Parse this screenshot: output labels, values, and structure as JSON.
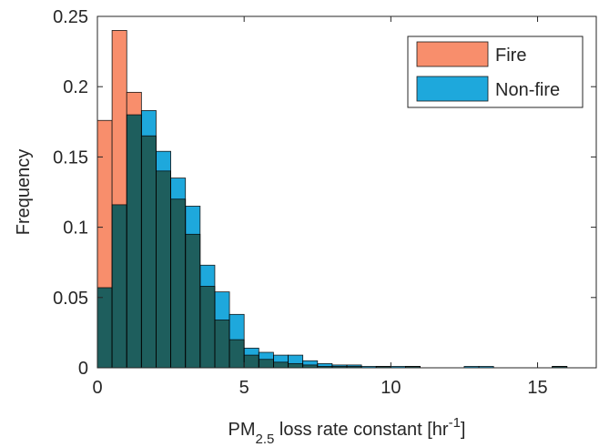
{
  "chart_data": {
    "type": "histogram",
    "ylabel": "Frequency",
    "xlabel": [
      "PM",
      "2.5",
      " loss rate constant [hr",
      "-1",
      "]"
    ],
    "bins": [
      0,
      0.5,
      1,
      1.5,
      2,
      2.5,
      3,
      3.5,
      4,
      4.5,
      5,
      5.5,
      6,
      6.5,
      7,
      7.5,
      8,
      8.5,
      9,
      9.5,
      10,
      10.5,
      11,
      11.5,
      12,
      12.5,
      13,
      13.5,
      14,
      14.5,
      15,
      15.5,
      16,
      16.5,
      17
    ],
    "series": [
      {
        "name": "Fire",
        "color": "#f88e6c",
        "values": [
          0.176,
          0.24,
          0.196,
          0.165,
          0.14,
          0.12,
          0.095,
          0.058,
          0.034,
          0.02,
          0.009,
          0.006,
          0.004,
          0.003,
          0.002,
          0.001,
          0.001,
          0.001,
          0,
          0.001,
          0,
          0.001,
          0,
          0,
          0,
          0,
          0,
          0,
          0,
          0,
          0,
          0.001,
          0,
          0
        ]
      },
      {
        "name": "Non-fire",
        "color": "#1ea8dc",
        "values": [
          0.057,
          0.116,
          0.18,
          0.183,
          0.154,
          0.135,
          0.115,
          0.073,
          0.054,
          0.038,
          0.014,
          0.011,
          0.009,
          0.009,
          0.005,
          0.003,
          0.002,
          0.002,
          0.001,
          0.001,
          0.001,
          0.001,
          0,
          0,
          0,
          0.001,
          0.001,
          0,
          0,
          0,
          0,
          0.001,
          0,
          0
        ]
      }
    ],
    "xlim": [
      0,
      17
    ],
    "xticks": [
      0,
      5,
      10,
      15
    ],
    "ylim": [
      0,
      0.25
    ],
    "yticks": [
      0,
      0.05,
      0.1,
      0.15,
      0.2,
      0.25
    ],
    "legend": "upper right"
  }
}
